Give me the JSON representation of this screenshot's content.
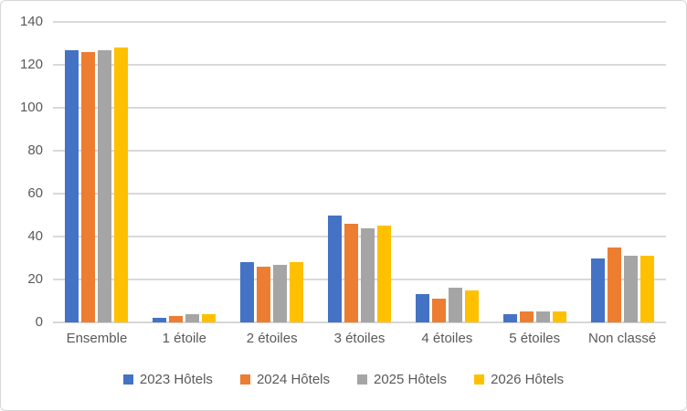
{
  "chart_data": {
    "type": "bar",
    "title": "",
    "xlabel": "",
    "ylabel": "",
    "categories": [
      "Ensemble",
      "1 étoile",
      "2 étoiles",
      "3 étoiles",
      "4 étoiles",
      "5 étoiles",
      "Non classé"
    ],
    "series": [
      {
        "name": "2023 Hôtels",
        "color": "#4472C4",
        "values": [
          127,
          2,
          28,
          50,
          13,
          4,
          30
        ]
      },
      {
        "name": "2024 Hôtels",
        "color": "#ED7D31",
        "values": [
          126,
          3,
          26,
          46,
          11,
          5,
          35
        ]
      },
      {
        "name": "2025 Hôtels",
        "color": "#A5A5A5",
        "values": [
          127,
          4,
          27,
          44,
          16,
          5,
          31
        ]
      },
      {
        "name": "2026 Hôtels",
        "color": "#FFC000",
        "values": [
          128,
          4,
          28,
          45,
          15,
          5,
          31
        ]
      }
    ],
    "ylim": [
      0,
      140
    ],
    "yticks": [
      0,
      20,
      40,
      60,
      80,
      100,
      120,
      140
    ],
    "grid": true,
    "legend_position": "bottom",
    "axis_text_color": "#595959",
    "gridline_color": "#D9D9D9",
    "frame_border_color": "#D6D6D6"
  }
}
